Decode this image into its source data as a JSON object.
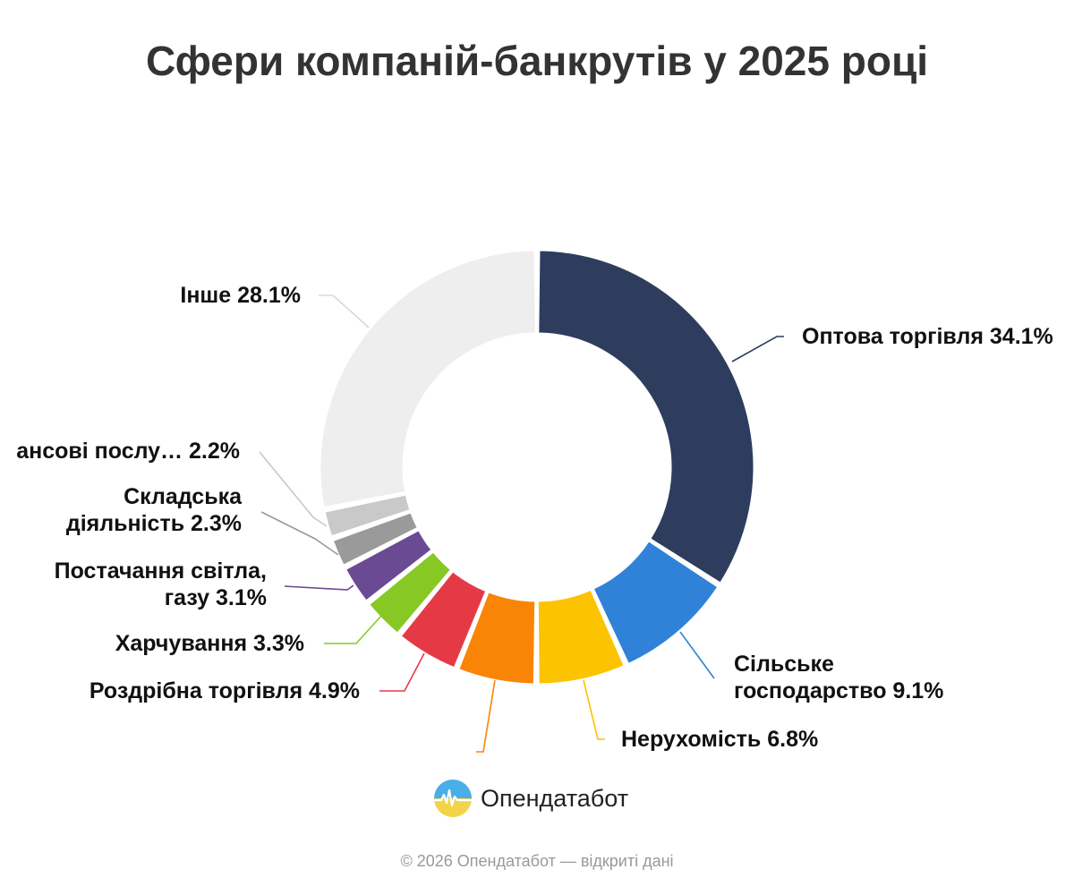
{
  "chart_data": {
    "type": "pie",
    "title": "Сфери компаній-банкрутів у 2025 році",
    "slices": [
      {
        "name": "Оптова торгівля",
        "value": 34.1,
        "color": "#2e3d5e",
        "label": "Оптова торгівля 34.1%"
      },
      {
        "name": "Сільське господарство",
        "value": 9.1,
        "color": "#2f82d8",
        "label": "Сільське господарство 9.1%"
      },
      {
        "name": "Нерухомість",
        "value": 6.8,
        "color": "#fcc300",
        "label": "Нерухомість 6.8%"
      },
      {
        "name": "",
        "value": 6.0,
        "color": "#fa8405",
        "label": ""
      },
      {
        "name": "Роздрібна торгівля",
        "value": 4.9,
        "color": "#e63946",
        "label": "Роздрібна торгівля 4.9%"
      },
      {
        "name": "Харчування",
        "value": 3.3,
        "color": "#88c825",
        "label": "Харчування 3.3%"
      },
      {
        "name": "Постачання світла, газу",
        "value": 3.1,
        "color": "#6a4a93",
        "label": "Постачання світла, газу 3.1%"
      },
      {
        "name": "Складська діяльність",
        "value": 2.3,
        "color": "#9a9a9a",
        "label": "Складська діяльність 2.3%"
      },
      {
        "name": "ансові послу…",
        "value": 2.2,
        "color": "#c9c9c9",
        "label": "ансові послу… 2.2%"
      },
      {
        "name": "Інше",
        "value": 28.1,
        "color": "#eeeeee",
        "label": "Інше 28.1%"
      }
    ],
    "labels_display": [
      [
        "Оптова торгівля 34.1%"
      ],
      [
        "Сільське",
        "господарство 9.1%"
      ],
      [
        "Нерухомість 6.8%"
      ],
      [],
      [
        "Роздрібна торгівля 4.9%"
      ],
      [
        "Харчування 3.3%"
      ],
      [
        "Постачання світла,",
        "газу 3.1%"
      ],
      [
        "Складська",
        "діяльність 2.3%"
      ],
      [
        "ансові послу… 2.2%"
      ],
      [
        "Інше 28.1%"
      ]
    ]
  },
  "title": "Сфери компаній-банкрутів у 2025 році",
  "brand": {
    "name": "Опендатабот",
    "icon": "opendatabot-logo-icon"
  },
  "footer": "© 2026 Опендатабот — відкриті дані"
}
